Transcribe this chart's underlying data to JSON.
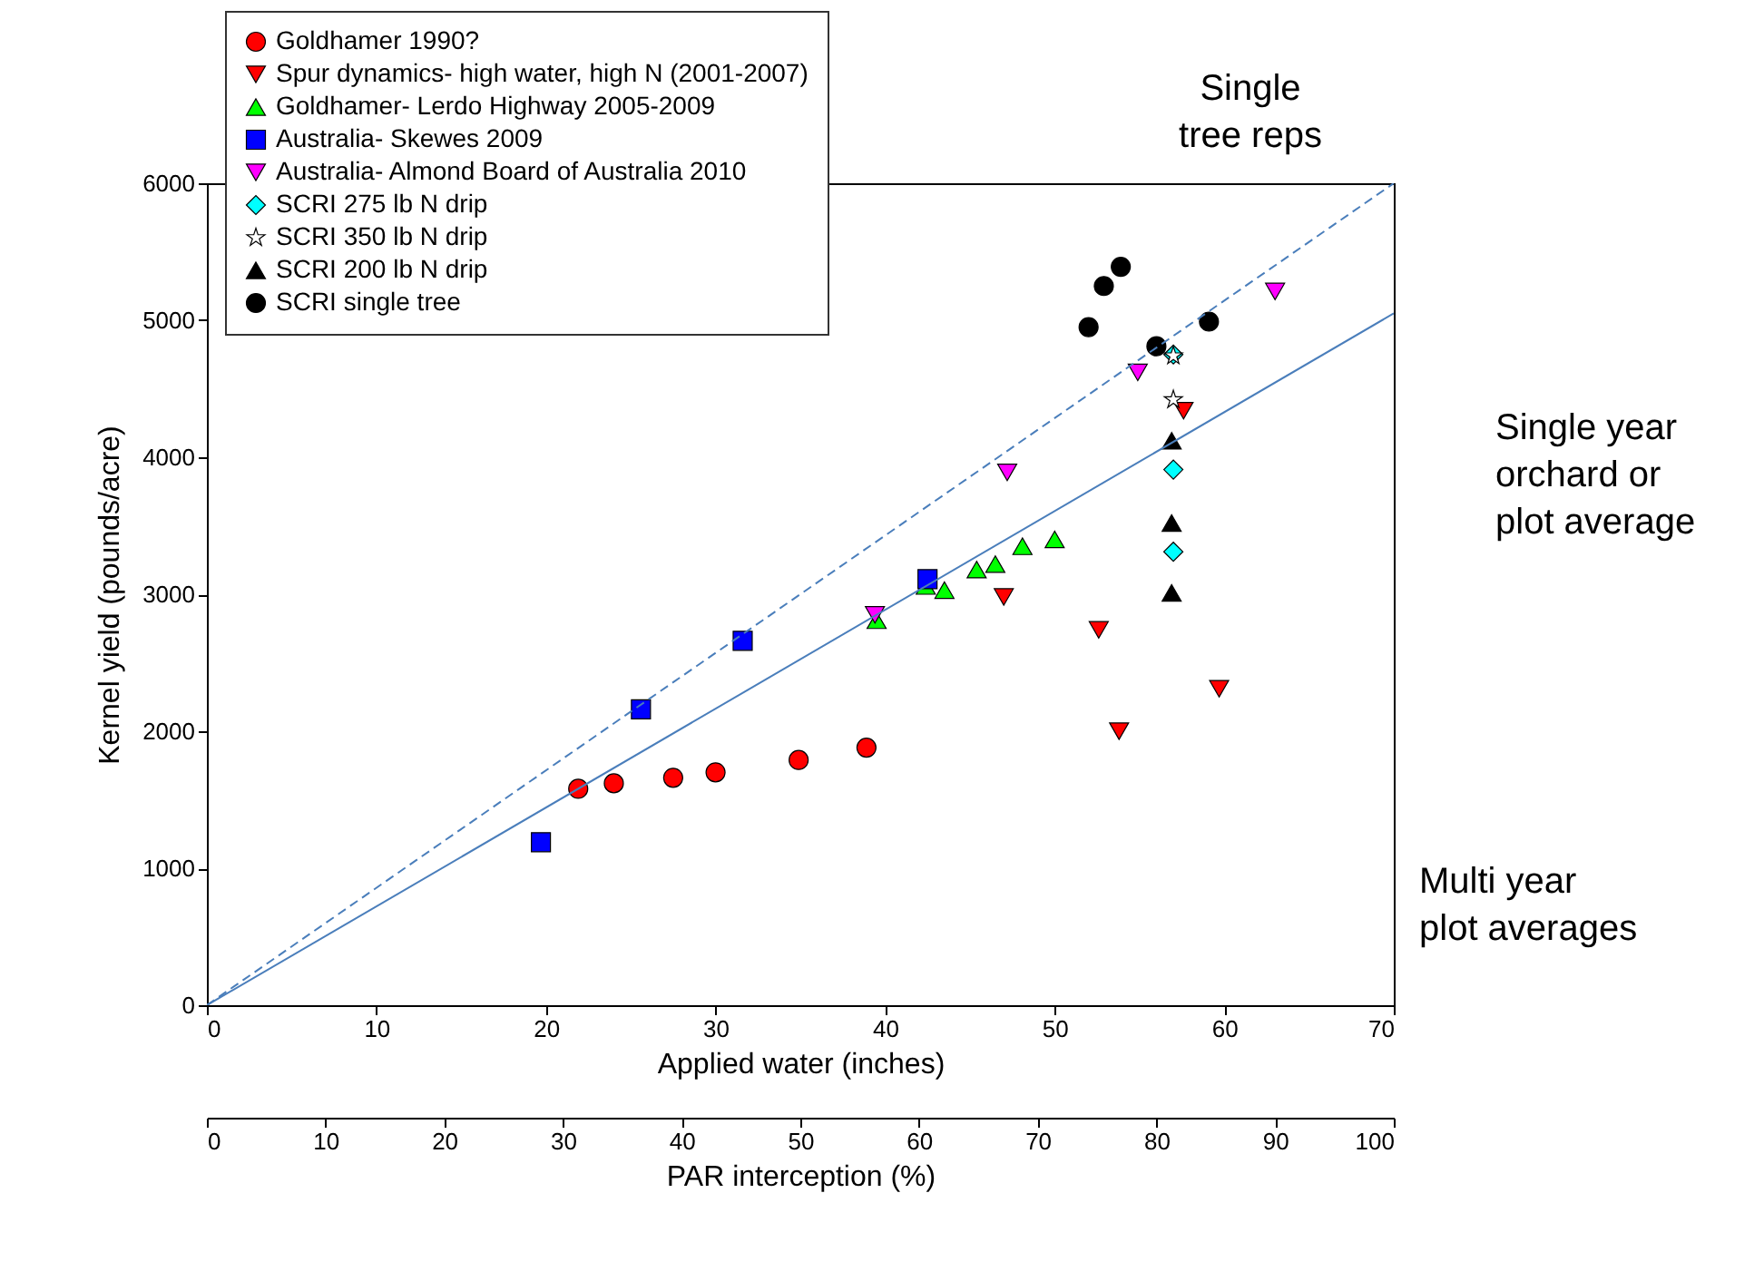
{
  "chart_data": {
    "type": "scatter",
    "xlabel": "Applied water (inches)",
    "ylabel": "Kernel yield (pounds/acre)",
    "x2label": "PAR interception (%)",
    "xlim": [
      0,
      70
    ],
    "xticks": [
      0,
      10,
      20,
      30,
      40,
      50,
      60,
      70
    ],
    "ylim": [
      0,
      6000
    ],
    "yticks": [
      0,
      1000,
      2000,
      3000,
      4000,
      5000,
      6000
    ],
    "x2lim": [
      0,
      100
    ],
    "x2ticks": [
      0,
      10,
      20,
      30,
      40,
      50,
      60,
      70,
      80,
      90,
      100
    ],
    "grid": false,
    "legend": "top left",
    "annotations": [
      "Single\ntree reps",
      "Single year\norchard or\nplot average",
      "Multi year\nplot averages"
    ],
    "series": [
      {
        "name": "Goldhamer 1990?",
        "color": "#ff0000",
        "marker": "circle",
        "x": [
          21.9,
          24.0,
          27.5,
          30.0,
          34.9,
          38.9
        ],
        "values": [
          1580,
          1620,
          1660,
          1700,
          1790,
          1880
        ]
      },
      {
        "name": "Spur dynamics- high water, high N (2001-2007)",
        "color": "#ff0000",
        "marker": "triangle-down",
        "x": [
          47.0,
          52.6,
          53.8,
          59.7,
          57.6
        ],
        "values": [
          2980,
          2740,
          2000,
          2310,
          4340
        ]
      },
      {
        "name": "Goldhamer- Lerdo Highway 2005-2009",
        "color": "#00ff00",
        "marker": "triangle",
        "x": [
          39.5,
          42.4,
          43.5,
          45.4,
          46.5,
          48.1,
          50.0
        ],
        "values": [
          2810,
          3060,
          3030,
          3180,
          3220,
          3350,
          3400
        ]
      },
      {
        "name": "Australia- Skewes 2009",
        "color": "#0000ff",
        "marker": "square",
        "x": [
          19.7,
          25.6,
          31.6,
          42.5
        ],
        "values": [
          1190,
          2160,
          2660,
          3110
        ]
      },
      {
        "name": "Australia- Almond Board of Australia 2010",
        "color": "#ff00ff",
        "marker": "triangle-down",
        "x": [
          39.4,
          47.2,
          54.9,
          63.0
        ],
        "values": [
          2850,
          3890,
          4620,
          5210
        ]
      },
      {
        "name": "SCRI 275 lb N drip",
        "color": "#00ffff",
        "marker": "diamond",
        "x": [
          57.0,
          57.0,
          57.0
        ],
        "values": [
          3310,
          3910,
          4750
        ]
      },
      {
        "name": "SCRI 350 lb N drip",
        "color": "#ffffff",
        "marker": "star",
        "x": [
          57.0,
          57.0
        ],
        "values": [
          4420,
          4740
        ]
      },
      {
        "name": "SCRI 200 lb N drip",
        "color": "#000000",
        "marker": "triangle",
        "x": [
          56.9,
          56.9,
          56.9
        ],
        "values": [
          3010,
          3520,
          4120
        ]
      },
      {
        "name": "SCRI single tree",
        "color": "#000000",
        "marker": "circle",
        "x": [
          52.0,
          52.9,
          53.9,
          56.0,
          59.1
        ],
        "values": [
          4950,
          5250,
          5390,
          4810,
          4990
        ]
      },
      {
        "type": "line",
        "color": "#4a7ebb",
        "line_style": "solid",
        "x": [
          0,
          70
        ],
        "values": [
          0,
          5050
        ]
      },
      {
        "type": "line",
        "color": "#4a7ebb",
        "line_style": "dashed",
        "x": [
          0,
          70
        ],
        "values": [
          0,
          6000
        ]
      }
    ]
  }
}
